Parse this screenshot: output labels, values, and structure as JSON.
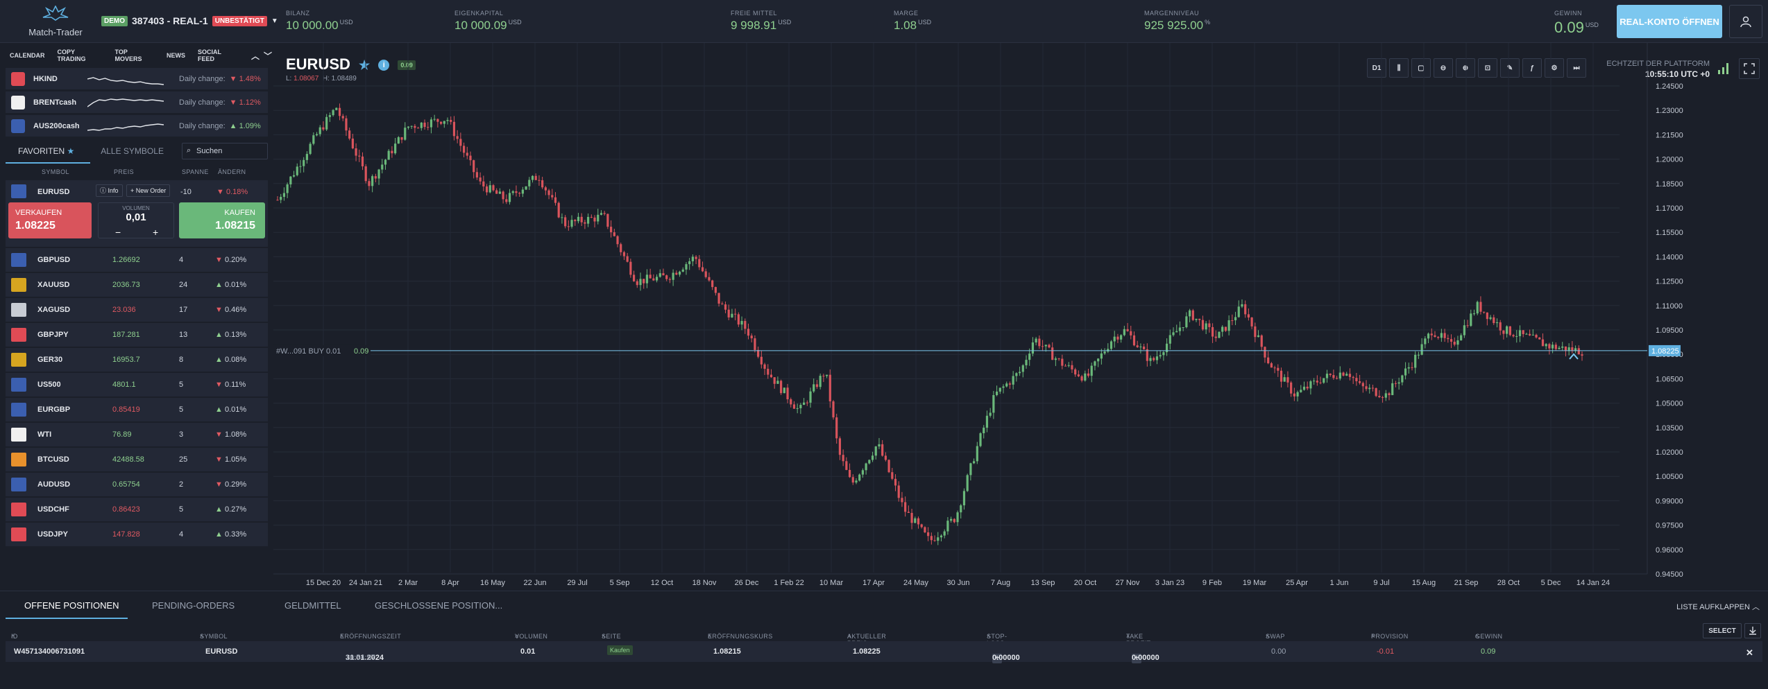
{
  "brand": {
    "name": "Match-Trader"
  },
  "account": {
    "demo_badge": "DEMO",
    "id": "387403 - REAL-1",
    "status": "UNBESTÄTIGT"
  },
  "stats": [
    {
      "label": "BILANZ",
      "value": "10 000.00",
      "unit": "USD"
    },
    {
      "label": "EIGENKAPITAL",
      "value": "10 000.09",
      "unit": "USD"
    },
    {
      "label": "FREIE MITTEL",
      "value": "9 998.91",
      "unit": "USD"
    },
    {
      "label": "MARGE",
      "value": "1.08",
      "unit": "USD"
    },
    {
      "label": "MARGENNIVEAU",
      "value": "925 925.00",
      "unit": "%"
    }
  ],
  "gewinn": {
    "label": "GEWINN",
    "value": "0.09",
    "unit": "USD"
  },
  "real_button": "REAL-KONTO ÖFFNEN",
  "left_tabs": [
    "CALENDAR",
    "COPY TRADING",
    "TOP MOVERS",
    "NEWS",
    "SOCIAL FEED"
  ],
  "movers": [
    {
      "symbol": "HKIND",
      "label": "Daily change:",
      "change": "1.48%",
      "dir": "down",
      "color": "#e04b55",
      "spark": [
        10,
        8,
        11,
        9,
        12,
        13,
        12,
        14,
        15,
        14,
        16,
        17,
        17,
        18
      ]
    },
    {
      "symbol": "BRENTcash",
      "label": "Daily change:",
      "change": "1.12%",
      "dir": "down",
      "color": "#f0f0f0",
      "spark": [
        16,
        10,
        6,
        7,
        5,
        6,
        5,
        6,
        7,
        6,
        7,
        6,
        7,
        8
      ]
    },
    {
      "symbol": "AUS200cash",
      "label": "Daily change:",
      "change": "1.09%",
      "dir": "up",
      "color": "#3b5fb0",
      "spark": [
        16,
        15,
        16,
        14,
        14,
        12,
        13,
        11,
        10,
        11,
        9,
        8,
        7,
        8
      ]
    }
  ],
  "symbol_tabs": {
    "favorites": "FAVORITEN",
    "all": "ALLE SYMBOLE",
    "search_placeholder": "Suchen"
  },
  "columns": {
    "symbol": "SYMBOL",
    "price": "PREIS",
    "spread": "SPANNE",
    "change": "ÄNDERN"
  },
  "selected": {
    "symbol": "EURUSD",
    "info": "Info",
    "new_order": "New Order",
    "spread": "-10",
    "change": "0.18%",
    "sell_label": "VERKAUFEN",
    "sell_price": "1.08225",
    "volume_label": "VOLUMEN",
    "volume": "0,01",
    "minus": "−",
    "plus": "+",
    "buy_label": "KAUFEN",
    "buy_price": "1.08215"
  },
  "symbols": [
    {
      "symbol": "GBPUSD",
      "price": "1.26692",
      "price_dir": "up",
      "spread": "4",
      "change": "0.20%",
      "change_dir": "down",
      "color": "#3b5fb0"
    },
    {
      "symbol": "XAUUSD",
      "price": "2036.73",
      "price_dir": "up",
      "spread": "24",
      "change": "0.01%",
      "change_dir": "up",
      "color": "#d6a520"
    },
    {
      "symbol": "XAGUSD",
      "price": "23.036",
      "price_dir": "down",
      "spread": "17",
      "change": "0.46%",
      "change_dir": "down",
      "color": "#c8ccd4"
    },
    {
      "symbol": "GBPJPY",
      "price": "187.281",
      "price_dir": "up",
      "spread": "13",
      "change": "0.13%",
      "change_dir": "up",
      "color": "#e04b55"
    },
    {
      "symbol": "GER30",
      "price": "16953.7",
      "price_dir": "up",
      "spread": "8",
      "change": "0.08%",
      "change_dir": "up",
      "color": "#d6a520"
    },
    {
      "symbol": "US500",
      "price": "4801.1",
      "price_dir": "up",
      "spread": "5",
      "change": "0.11%",
      "change_dir": "down",
      "color": "#3b5fb0"
    },
    {
      "symbol": "EURGBP",
      "price": "0.85419",
      "price_dir": "down",
      "spread": "5",
      "change": "0.01%",
      "change_dir": "up",
      "color": "#3b5fb0"
    },
    {
      "symbol": "WTI",
      "price": "76.89",
      "price_dir": "up",
      "spread": "3",
      "change": "1.08%",
      "change_dir": "down",
      "color": "#f0f0f0"
    },
    {
      "symbol": "BTCUSD",
      "price": "42488.58",
      "price_dir": "up",
      "spread": "25",
      "change": "1.05%",
      "change_dir": "down",
      "color": "#e8912c"
    },
    {
      "symbol": "AUDUSD",
      "price": "0.65754",
      "price_dir": "up",
      "spread": "2",
      "change": "0.29%",
      "change_dir": "down",
      "color": "#3b5fb0"
    },
    {
      "symbol": "USDCHF",
      "price": "0.86423",
      "price_dir": "down",
      "spread": "5",
      "change": "0.27%",
      "change_dir": "up",
      "color": "#e04b55"
    },
    {
      "symbol": "USDJPY",
      "price": "147.828",
      "price_dir": "down",
      "spread": "4",
      "change": "0.33%",
      "change_dir": "up",
      "color": "#e04b55"
    }
  ],
  "chart_header": {
    "symbol": "EURUSD",
    "badge": "0.09",
    "low_label": "L:",
    "low": "1.08067",
    "high_label": "H:",
    "high": "1.08489",
    "timeframe": "D1",
    "platform_time_label": "ECHTZEIT DER PLATTFORM",
    "platform_time": "10:55:10 UTC +0"
  },
  "chart_data": {
    "type": "candlestick",
    "y_ticks": [
      "1.24500",
      "1.23000",
      "1.21500",
      "1.20000",
      "1.18500",
      "1.17000",
      "1.15500",
      "1.14000",
      "1.12500",
      "1.11000",
      "1.09500",
      "1.08000",
      "1.06500",
      "1.05000",
      "1.03500",
      "1.02000",
      "1.00500",
      "0.99000",
      "0.97500",
      "0.96000",
      "0.94500"
    ],
    "y_min": 0.945,
    "y_max": 1.245,
    "x_ticks": [
      "15 Dec 20",
      "24 Jan 21",
      "2 Mar",
      "8 Apr",
      "16 May",
      "22 Jun",
      "29 Jul",
      "5 Sep",
      "12 Oct",
      "18 Nov",
      "26 Dec",
      "1 Feb 22",
      "10 Mar",
      "17 Apr",
      "24 May",
      "30 Jun",
      "7 Aug",
      "13 Sep",
      "20 Oct",
      "27 Nov",
      "3 Jan 23",
      "9 Feb",
      "19 Mar",
      "25 Apr",
      "1 Jun",
      "9 Jul",
      "15 Aug",
      "21 Sep",
      "28 Oct",
      "5 Dec",
      "14 Jan 24"
    ],
    "path_x": [
      0,
      0.03,
      0.045,
      0.07,
      0.1,
      0.13,
      0.155,
      0.175,
      0.2,
      0.22,
      0.25,
      0.275,
      0.3,
      0.32,
      0.34,
      0.36,
      0.375,
      0.4,
      0.42,
      0.43,
      0.44,
      0.46,
      0.48,
      0.5,
      0.52,
      0.535,
      0.55,
      0.57,
      0.58,
      0.6,
      0.62,
      0.64,
      0.65,
      0.67,
      0.7,
      0.72,
      0.74,
      0.76,
      0.78,
      0.8,
      0.82,
      0.83,
      0.85,
      0.87,
      0.885,
      0.9,
      0.92,
      0.94,
      0.96,
      0.975,
      1.0
    ],
    "path_y": [
      1.175,
      1.215,
      1.232,
      1.185,
      1.22,
      1.225,
      1.185,
      1.175,
      1.19,
      1.16,
      1.165,
      1.125,
      1.128,
      1.14,
      1.11,
      1.095,
      1.07,
      1.045,
      1.07,
      1.02,
      1.0,
      1.025,
      0.985,
      0.965,
      0.98,
      1.02,
      1.055,
      1.07,
      1.09,
      1.075,
      1.065,
      1.09,
      1.095,
      1.075,
      1.105,
      1.09,
      1.11,
      1.075,
      1.055,
      1.065,
      1.07,
      1.06,
      1.055,
      1.075,
      1.095,
      1.085,
      1.11,
      1.095,
      1.09,
      1.085,
      1.082
    ],
    "current_price": "1.08225",
    "position_line_label": "#W...091 BUY 0.01",
    "position_line_profit": "0.09"
  },
  "bottom_tabs": [
    "OFFENE POSITIONEN",
    "PENDING-ORDERS",
    "GELDMITTEL",
    "GESCHLOSSENE POSITION..."
  ],
  "expand_label": "LISTE AUFKLAPPEN",
  "table_headers": [
    "ID",
    "SYMBOL",
    "ERÖFFNUNGSZEIT",
    "VOLUMEN",
    "SEITE",
    "ERÖFFNUNGSKURS",
    "AKTUELLER PREIS",
    "STOP-LOSS",
    "TAKE PROFIT",
    "SWAP",
    "PROVISION",
    "GEWINN"
  ],
  "select_label": "SELECT",
  "position": {
    "id": "W457134006731091",
    "symbol": "EURUSD",
    "date": "31.01.2024",
    "time": "10:54:57",
    "volume": "0.01",
    "side": "Kaufen",
    "open_price": "1.08215",
    "current_price": "1.08225",
    "stop_loss": "0.00000",
    "take_profit": "0.00000",
    "swap": "0.00",
    "commission": "-0.01",
    "profit": "0.09"
  }
}
